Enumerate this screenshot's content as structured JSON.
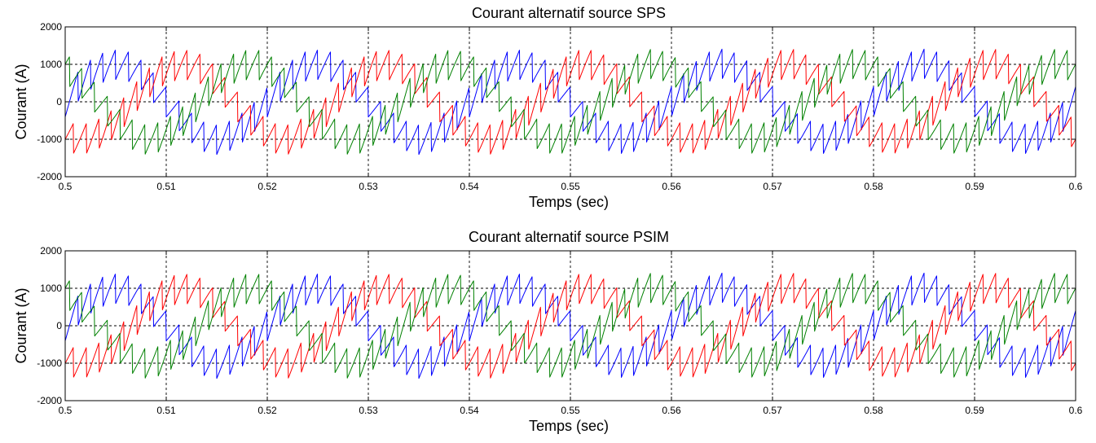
{
  "chart_data": [
    {
      "type": "line",
      "title": "Courant alternatif source SPS",
      "xlabel": "Temps (sec)",
      "ylabel": "Courant (A)",
      "xlim": [
        0.5,
        0.6
      ],
      "ylim": [
        -2000,
        2000
      ],
      "xticks": [
        0.5,
        0.51,
        0.52,
        0.53,
        0.54,
        0.55,
        0.56,
        0.57,
        0.58,
        0.59,
        0.6
      ],
      "xtick_labels": [
        "0.5",
        "0.51",
        "0.52",
        "0.53",
        "0.54",
        "0.55",
        "0.56",
        "0.57",
        "0.58",
        "0.59",
        "0.6"
      ],
      "yticks": [
        -2000,
        -1000,
        0,
        1000,
        2000
      ],
      "ytick_labels": [
        "-2000",
        "-1000",
        "0",
        "1000",
        "2000"
      ],
      "grid": true,
      "fundamental_frequency_hz": 50,
      "waveform": "sinusoid with sawtooth ripple",
      "series": [
        {
          "color": "#0000ff",
          "amplitude": 1000,
          "phase_deg": 0,
          "ripple_amplitude": 450,
          "ripple_period": 0.00125
        },
        {
          "color": "#ff0000",
          "amplitude": 1000,
          "phase_deg": -120,
          "ripple_amplitude": 450,
          "ripple_period": 0.00125
        },
        {
          "color": "#008000",
          "amplitude": 1000,
          "phase_deg": 120,
          "ripple_amplitude": 450,
          "ripple_period": 0.00125
        }
      ]
    },
    {
      "type": "line",
      "title": "Courant alternatif source PSIM",
      "xlabel": "Temps (sec)",
      "ylabel": "Courant (A)",
      "xlim": [
        0.5,
        0.6
      ],
      "ylim": [
        -2000,
        2000
      ],
      "xticks": [
        0.5,
        0.51,
        0.52,
        0.53,
        0.54,
        0.55,
        0.56,
        0.57,
        0.58,
        0.59,
        0.6
      ],
      "xtick_labels": [
        "0.5",
        "0.51",
        "0.52",
        "0.53",
        "0.54",
        "0.55",
        "0.56",
        "0.57",
        "0.58",
        "0.59",
        "0.6"
      ],
      "yticks": [
        -2000,
        -1000,
        0,
        1000,
        2000
      ],
      "ytick_labels": [
        "-2000",
        "-1000",
        "0",
        "1000",
        "2000"
      ],
      "grid": true,
      "fundamental_frequency_hz": 50,
      "waveform": "sinusoid with sawtooth ripple",
      "series": [
        {
          "color": "#0000ff",
          "amplitude": 1000,
          "phase_deg": 0,
          "ripple_amplitude": 450,
          "ripple_period": 0.00125
        },
        {
          "color": "#ff0000",
          "amplitude": 1000,
          "phase_deg": -120,
          "ripple_amplitude": 450,
          "ripple_period": 0.00125
        },
        {
          "color": "#008000",
          "amplitude": 1000,
          "phase_deg": 120,
          "ripple_amplitude": 450,
          "ripple_period": 0.00125
        }
      ]
    }
  ]
}
